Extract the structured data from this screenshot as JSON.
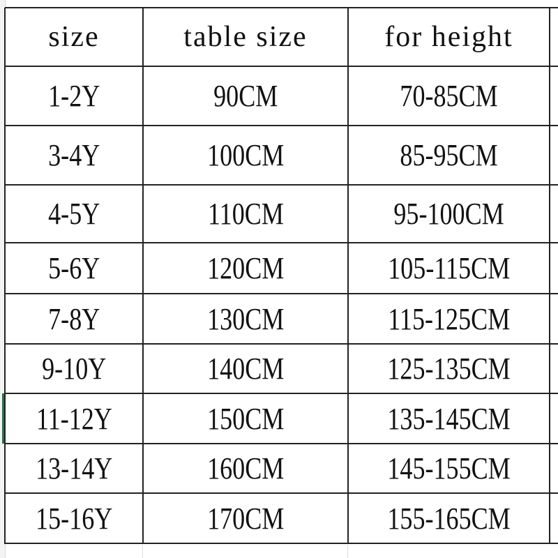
{
  "table": {
    "headers": [
      "size",
      "table size",
      "for height",
      ""
    ],
    "rows": [
      [
        "1-2Y",
        "90CM",
        "70-85CM"
      ],
      [
        "3-4Y",
        "100CM",
        "85-95CM"
      ],
      [
        "4-5Y",
        "110CM",
        "95-100CM"
      ],
      [
        "5-6Y",
        "120CM",
        "105-115CM"
      ],
      [
        "7-8Y",
        "130CM",
        "115-125CM"
      ],
      [
        "9-10Y",
        "140CM",
        "125-135CM"
      ],
      [
        "11-12Y",
        "150CM",
        "135-145CM"
      ],
      [
        "13-14Y",
        "160CM",
        "145-155CM"
      ],
      [
        "15-16Y",
        "170CM",
        "155-165CM"
      ]
    ]
  },
  "colors": {
    "grid": "#222222",
    "selection": "#217346"
  }
}
